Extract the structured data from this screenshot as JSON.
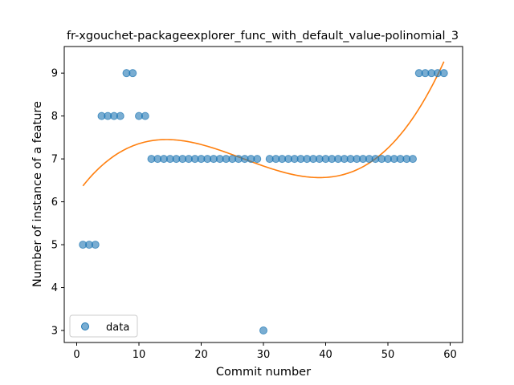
{
  "chart_data": {
    "type": "scatter",
    "title": "fr-xgouchet-packageexplorer_func_with_default_value-polinomial_3",
    "xlabel": "Commit number",
    "ylabel": "Number of instance of a feature",
    "xlim": [
      -2,
      62
    ],
    "ylim": [
      2.72,
      9.62
    ],
    "xticks": [
      0,
      10,
      20,
      30,
      40,
      50,
      60
    ],
    "yticks": [
      3,
      4,
      5,
      6,
      7,
      8,
      9
    ],
    "grid": false,
    "legend_placement": "lower-left",
    "series": [
      {
        "name": "data",
        "kind": "points",
        "color": "#1f77b4",
        "x": [
          1,
          2,
          3,
          4,
          5,
          6,
          7,
          8,
          9,
          10,
          11,
          12,
          13,
          14,
          15,
          16,
          17,
          18,
          19,
          20,
          21,
          22,
          23,
          24,
          25,
          26,
          27,
          28,
          29,
          30,
          31,
          32,
          33,
          34,
          35,
          36,
          37,
          38,
          39,
          40,
          41,
          42,
          43,
          44,
          45,
          46,
          47,
          48,
          49,
          50,
          51,
          52,
          53,
          54,
          55,
          56,
          57,
          58,
          59
        ],
        "y": [
          5,
          5,
          5,
          8,
          8,
          8,
          8,
          9,
          9,
          8,
          8,
          7,
          7,
          7,
          7,
          7,
          7,
          7,
          7,
          7,
          7,
          7,
          7,
          7,
          7,
          7,
          7,
          7,
          7,
          3,
          7,
          7,
          7,
          7,
          7,
          7,
          7,
          7,
          7,
          7,
          7,
          7,
          7,
          7,
          7,
          7,
          7,
          7,
          7,
          7,
          7,
          7,
          7,
          7,
          9,
          9,
          9,
          9,
          9
        ]
      },
      {
        "kind": "fit-curve",
        "color": "#ff7f0e",
        "x": [
          1,
          5,
          10,
          15,
          20,
          25,
          30,
          35,
          40,
          45,
          50,
          55,
          59
        ],
        "y": [
          6.37,
          6.98,
          7.35,
          7.42,
          7.32,
          7.11,
          6.86,
          6.65,
          6.57,
          6.73,
          7.22,
          8.18,
          9.28
        ]
      }
    ]
  }
}
